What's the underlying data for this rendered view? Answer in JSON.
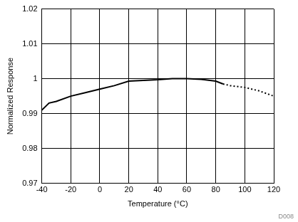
{
  "chart_data": {
    "type": "line",
    "x_label": "Temperature (°C)",
    "y_label": "Normalized Response",
    "annotation": "D008",
    "series": [
      {
        "x": [
          -40,
          -35,
          -30,
          -20,
          -10,
          0,
          10,
          20,
          30,
          40,
          50,
          60,
          70,
          80,
          85
        ],
        "values": [
          0.991,
          0.993,
          0.9935,
          0.995,
          0.996,
          0.997,
          0.998,
          0.9993,
          0.9995,
          0.9997,
          1.0,
          1.0,
          0.9998,
          0.9993,
          0.9985
        ],
        "color": "#000000",
        "line_style": "solid"
      },
      {
        "x": [
          85,
          90,
          100,
          110,
          120
        ],
        "values": [
          0.9985,
          0.998,
          0.9975,
          0.9965,
          0.995
        ],
        "color": "#000000",
        "line_style": "dotted"
      }
    ],
    "xlim": [
      -40,
      120
    ],
    "xticks": [
      -40,
      -20,
      0,
      20,
      40,
      60,
      80,
      100,
      120
    ],
    "ylim": [
      0.97,
      1.02
    ],
    "yticks": [
      0.97,
      0.98,
      0.99,
      1,
      1.01,
      1.02
    ],
    "grid": true
  }
}
